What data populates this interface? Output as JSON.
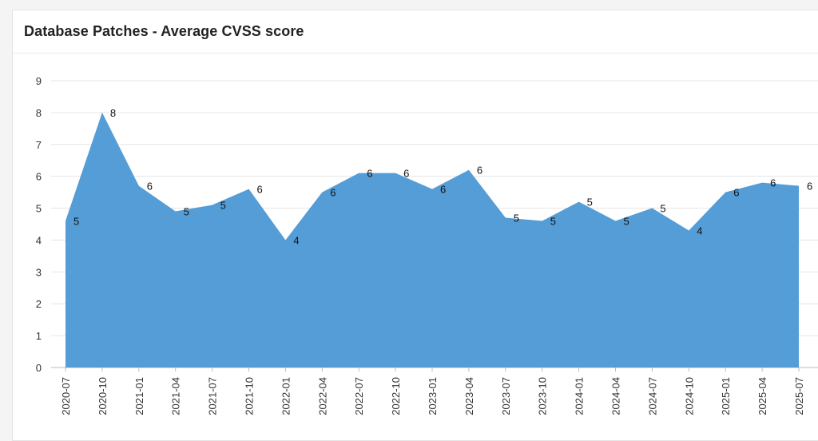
{
  "card": {
    "title": "Database Patches - Average CVSS score"
  },
  "colors": {
    "area": "#549dd6",
    "grid": "#e6e6e6",
    "axis": "#bdbdbd"
  },
  "chart_data": {
    "type": "area",
    "title": "Database Patches - Average CVSS score",
    "xlabel": "",
    "ylabel": "",
    "ylim": [
      0,
      9
    ],
    "yticks": [
      0,
      1,
      2,
      3,
      4,
      5,
      6,
      7,
      8,
      9
    ],
    "grid": true,
    "legend": "none",
    "categories": [
      "2020-07",
      "2020-10",
      "2021-01",
      "2021-04",
      "2021-07",
      "2021-10",
      "2022-01",
      "2022-04",
      "2022-07",
      "2022-10",
      "2023-01",
      "2023-04",
      "2023-07",
      "2023-10",
      "2024-01",
      "2024-04",
      "2024-07",
      "2024-10",
      "2025-01",
      "2025-04",
      "2025-07"
    ],
    "values": [
      4.6,
      8.0,
      5.7,
      4.9,
      5.1,
      5.6,
      4.0,
      5.5,
      6.1,
      6.1,
      5.6,
      6.2,
      4.7,
      4.6,
      5.2,
      4.6,
      5.0,
      4.3,
      5.5,
      5.8,
      5.7
    ],
    "data_labels": [
      "5",
      "8",
      "6",
      "5",
      "5",
      "6",
      "4",
      "6",
      "6",
      "6",
      "6",
      "6",
      "5",
      "5",
      "5",
      "5",
      "5",
      "4",
      "6",
      "6",
      "6"
    ]
  }
}
